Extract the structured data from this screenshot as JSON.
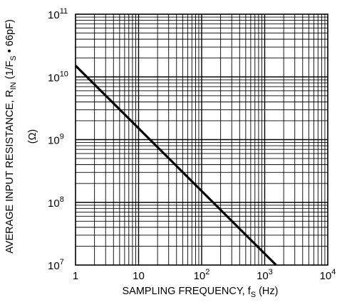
{
  "chart_data": {
    "type": "line",
    "x_scale": "log",
    "y_scale": "log",
    "xlim": [
      1,
      10000
    ],
    "ylim": [
      10000000,
      100000000000
    ],
    "grid": true,
    "x_ticks": [
      {
        "value": 1,
        "base": "1",
        "exp": ""
      },
      {
        "value": 10,
        "base": "10",
        "exp": ""
      },
      {
        "value": 100,
        "base": "10",
        "exp": "2"
      },
      {
        "value": 1000,
        "base": "10",
        "exp": "3"
      },
      {
        "value": 10000,
        "base": "10",
        "exp": "4"
      }
    ],
    "y_ticks": [
      {
        "value": 10000000,
        "base": "10",
        "exp": "7"
      },
      {
        "value": 100000000,
        "base": "10",
        "exp": "8"
      },
      {
        "value": 1000000000,
        "base": "10",
        "exp": "9"
      },
      {
        "value": 10000000000,
        "base": "10",
        "exp": "10"
      },
      {
        "value": 100000000000,
        "base": "10",
        "exp": "11"
      }
    ],
    "xlabel": {
      "main": "SAMPLING FREQUENCY, f",
      "sub": "S",
      "tail": " (Hz)"
    },
    "ylabel": {
      "line1_a": "AVERAGE INPUT RESISTANCE, R",
      "line1_sub1": "IN",
      "line1_b": " (1/F",
      "line1_sub2": "S",
      "line1_c": " • 66pF)",
      "line2": "(Ω)"
    },
    "series": [
      {
        "x": [
          1,
          1515
        ],
        "y": [
          15150000000,
          10000000
        ],
        "color": "#000000"
      }
    ]
  }
}
